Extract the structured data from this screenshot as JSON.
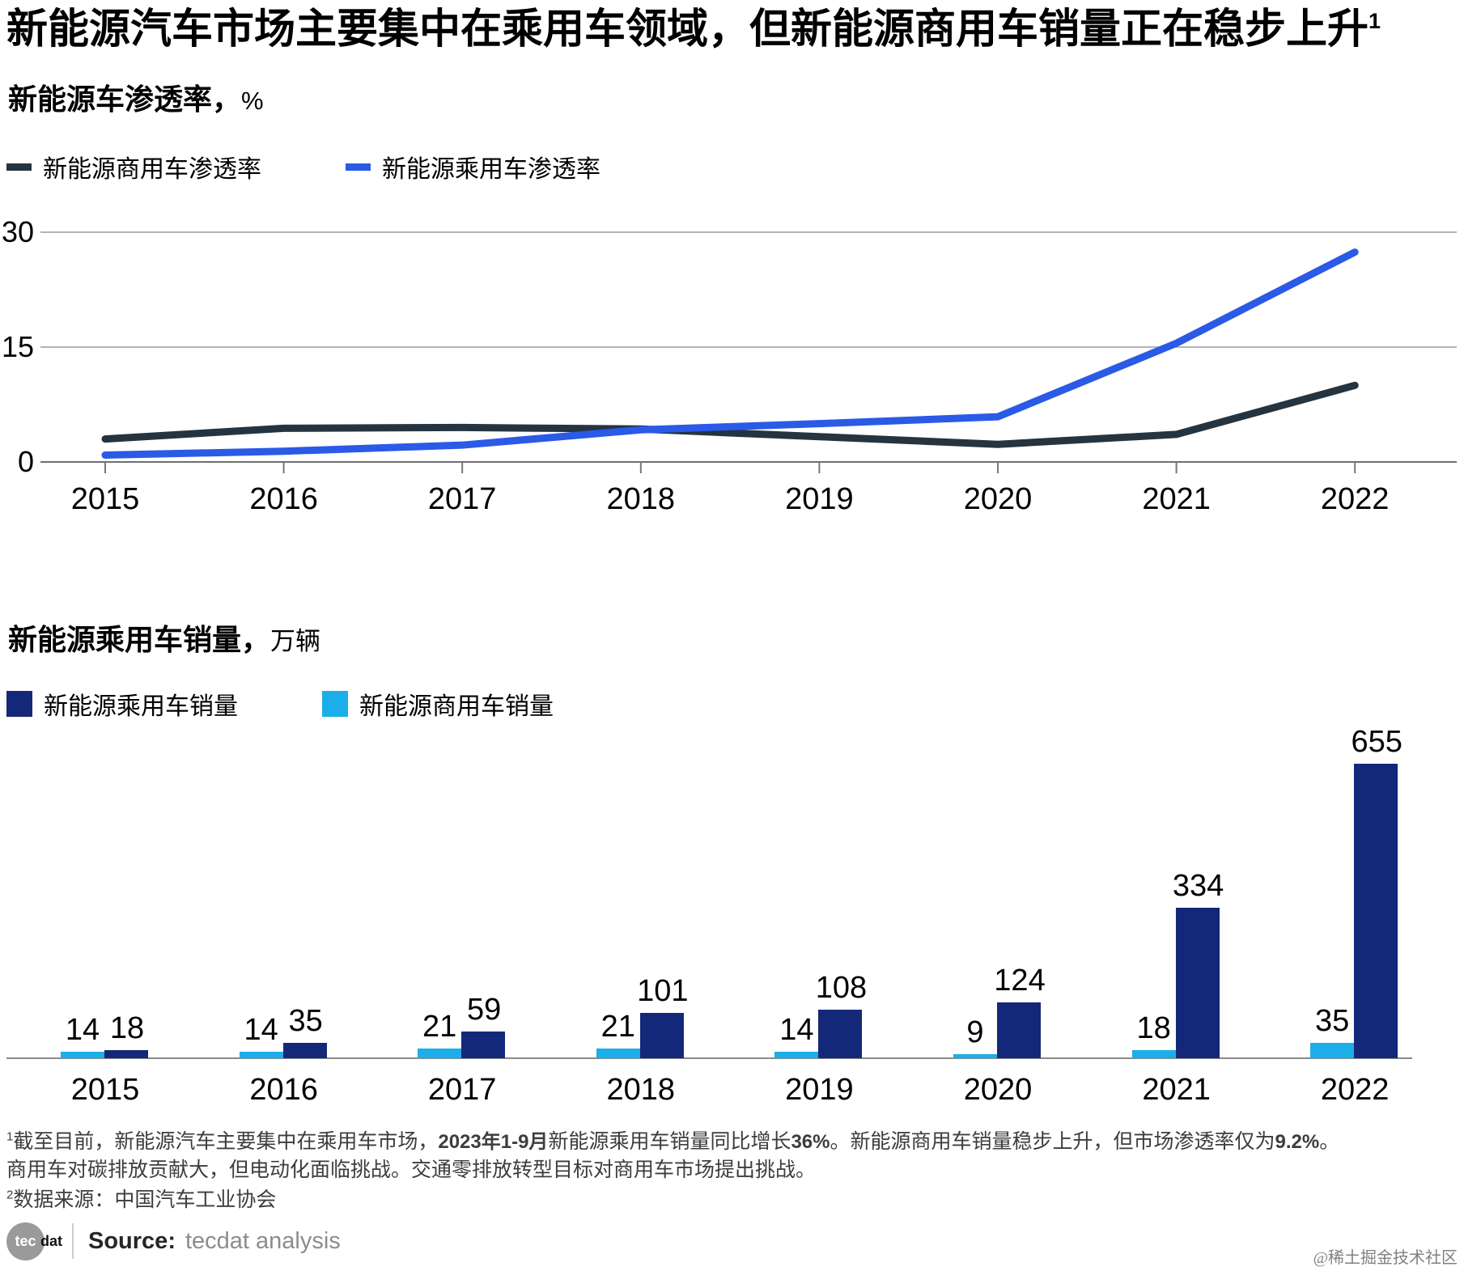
{
  "title": {
    "text": "新能源汽车市场主要集中在乘用车领域，但新能源商用车销量正在稳步上升",
    "sup": "1"
  },
  "chart_data": [
    {
      "type": "line",
      "title": "新能源车渗透率，%",
      "heading": {
        "bold": "新能源车渗透率，",
        "unit": "%"
      },
      "x": [
        2015,
        2016,
        2017,
        2018,
        2019,
        2020,
        2021,
        2022
      ],
      "series": [
        {
          "name": "新能源商用车渗透率",
          "color": "#243440",
          "values": [
            3.0,
            4.4,
            4.5,
            4.3,
            3.3,
            2.3,
            3.6,
            10.0
          ]
        },
        {
          "name": "新能源乘用车渗透率",
          "color": "#2a5ae6",
          "values": [
            0.9,
            1.4,
            2.2,
            4.2,
            5.0,
            5.9,
            15.5,
            27.4
          ]
        }
      ],
      "ylim": [
        0,
        30
      ],
      "y_ticks": [
        30,
        15,
        0
      ],
      "grid": true,
      "legend_position": "top-left"
    },
    {
      "type": "bar",
      "title": "新能源乘用车销量，万辆",
      "heading": {
        "bold": "新能源乘用车销量，",
        "unit": "万辆"
      },
      "categories": [
        2015,
        2016,
        2017,
        2018,
        2019,
        2020,
        2021,
        2022
      ],
      "series": [
        {
          "name": "新能源乘用车销量",
          "color": "#142879",
          "values": [
            18,
            35,
            59,
            101,
            108,
            124,
            334,
            655
          ]
        },
        {
          "name": "新能源商用车销量",
          "color": "#1caee9",
          "values": [
            14,
            14,
            21,
            21,
            14,
            9,
            18,
            35
          ]
        }
      ],
      "data_labels": true,
      "ylim": [
        0,
        700
      ],
      "grid": false,
      "legend_position": "top-left"
    }
  ],
  "footnotes": {
    "note1_lines": [
      [
        {
          "t": "1",
          "sup": true
        },
        {
          "t": "截至目前，新能源汽车主要集中在乘用车市场，"
        },
        {
          "t": "2023年1-9月",
          "b": true
        },
        {
          "t": "新能源乘用车销量同比增长"
        },
        {
          "t": "36%",
          "b": true
        },
        {
          "t": "。新能源商用车销量稳步上升，但市场渗透率仅为"
        },
        {
          "t": "9.2%",
          "b": true
        },
        {
          "t": "。"
        }
      ],
      [
        {
          "t": "商用车对碳排放贡献大，但电动化面临挑战。交通零排放转型目标对商用车市场提出挑战。"
        }
      ]
    ],
    "note2_segments": [
      {
        "t": "2",
        "sup": true
      },
      {
        "t": "数据来源：中国汽车工业协会"
      }
    ]
  },
  "source": {
    "logo_circle": "tec",
    "logo_rest": "dat",
    "label": "Source:",
    "value": "tecdat analysis"
  },
  "watermark": "@稀土掘金技术社区",
  "colors": {
    "gridline": "#9b9b9b",
    "zero_axis": "#6f6f6f",
    "tick": "#777777",
    "bar_baseline": "#8a8a8a"
  }
}
